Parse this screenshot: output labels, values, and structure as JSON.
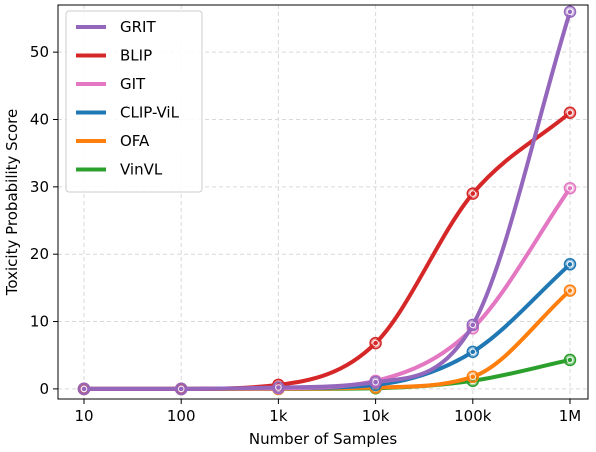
{
  "chart_data": {
    "type": "line",
    "title": "",
    "xlabel": "Number of Samples",
    "ylabel": "Toxicity Probability Score",
    "x_scale": "log",
    "categories": [
      "10",
      "100",
      "1k",
      "10k",
      "100k",
      "1M"
    ],
    "x": [
      10,
      100,
      1000,
      10000,
      100000,
      1000000
    ],
    "ylim": [
      -1.5,
      57
    ],
    "yticks": [
      0,
      10,
      20,
      30,
      40,
      50
    ],
    "grid": true,
    "legend_position": "top-left",
    "series": [
      {
        "name": "GRIT",
        "color": "#9467bd",
        "values": [
          0.0,
          0.0,
          0.2,
          1.0,
          9.5,
          56.0
        ]
      },
      {
        "name": "BLIP",
        "color": "#d62728",
        "values": [
          0.0,
          0.0,
          0.6,
          6.8,
          29.0,
          41.0
        ]
      },
      {
        "name": "GIT",
        "color": "#e377c2",
        "values": [
          0.0,
          0.0,
          0.1,
          1.2,
          9.0,
          29.8
        ]
      },
      {
        "name": "CLIP-ViL",
        "color": "#1f77b4",
        "values": [
          0.0,
          0.0,
          0.1,
          0.6,
          5.5,
          18.5
        ]
      },
      {
        "name": "OFA",
        "color": "#ff7f0e",
        "values": [
          0.0,
          0.0,
          0.0,
          0.2,
          1.8,
          14.6
        ]
      },
      {
        "name": "VinVL",
        "color": "#2ca02c",
        "values": [
          0.0,
          0.0,
          0.0,
          0.1,
          1.2,
          4.3
        ]
      }
    ]
  }
}
